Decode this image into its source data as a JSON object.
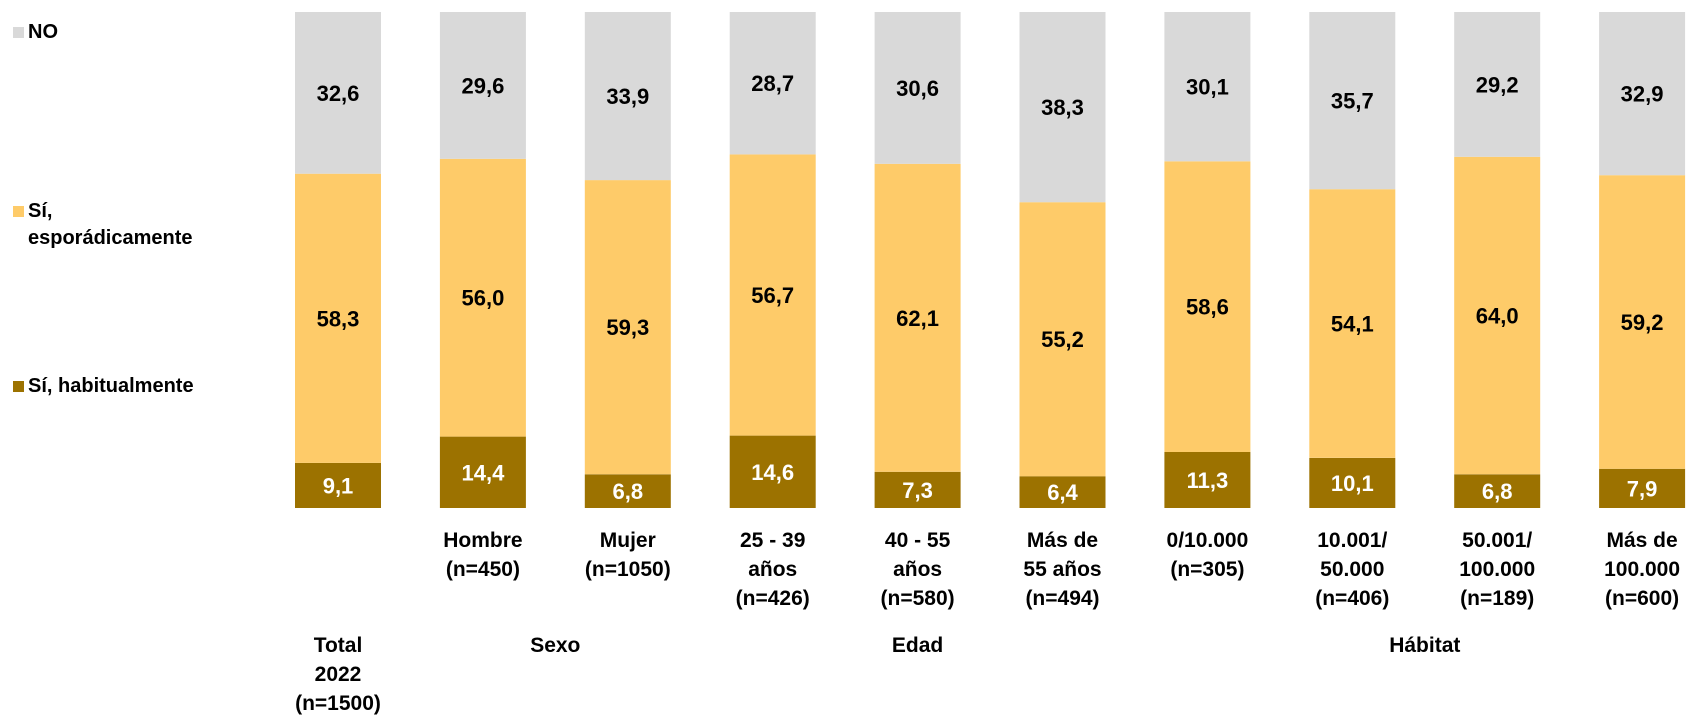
{
  "chart_data": {
    "type": "bar",
    "stacked": true,
    "ylim": [
      0,
      100
    ],
    "grid": false,
    "legend_position": "left",
    "categories": [
      [
        "Total",
        "2022",
        "(n=1500)"
      ],
      [
        "Hombre",
        "(n=450)"
      ],
      [
        "Mujer",
        "(n=1050)"
      ],
      [
        "25 - 39",
        "años",
        "(n=426)"
      ],
      [
        "40 - 55",
        "años",
        "(n=580)"
      ],
      [
        "Más de",
        "55 años",
        "(n=494)"
      ],
      [
        "0/10.000",
        "(n=305)"
      ],
      [
        "10.001/",
        "50.000",
        "(n=406)"
      ],
      [
        "50.001/",
        "100.000",
        "(n=189)"
      ],
      [
        "Más de",
        "100.000",
        "(n=600)"
      ]
    ],
    "series": [
      {
        "name": "Sí, habitualmente",
        "color": "#9c7200",
        "label_color": "#ffffff",
        "values": [
          9.1,
          14.4,
          6.8,
          14.6,
          7.3,
          6.4,
          11.3,
          10.1,
          6.8,
          7.9
        ],
        "labels": [
          "9,1",
          "14,4",
          "6,8",
          "14,6",
          "7,3",
          "6,4",
          "11,3",
          "10,1",
          "6,8",
          "7,9"
        ]
      },
      {
        "name": "Sí, esporádicamente",
        "color": "#fecb69",
        "label_color": "#000000",
        "values": [
          58.3,
          56.0,
          59.3,
          56.7,
          62.1,
          55.2,
          58.6,
          54.1,
          64.0,
          59.2
        ],
        "labels": [
          "58,3",
          "56,0",
          "59,3",
          "56,7",
          "62,1",
          "55,2",
          "58,6",
          "54,1",
          "64,0",
          "59,2"
        ]
      },
      {
        "name": "NO",
        "color": "#d9d9d9",
        "label_color": "#000000",
        "values": [
          32.6,
          29.6,
          33.9,
          28.7,
          30.6,
          38.3,
          30.1,
          35.7,
          29.2,
          32.9
        ],
        "labels": [
          "32,6",
          "29,6",
          "33,9",
          "28,7",
          "30,6",
          "38,3",
          "30,1",
          "35,7",
          "29,2",
          "32,9"
        ]
      }
    ],
    "legend": [
      {
        "label_lines": [
          "NO"
        ],
        "color": "#d9d9d9"
      },
      {
        "label_lines": [
          "Sí,",
          "esporádicamente"
        ],
        "color": "#fecb69"
      },
      {
        "label_lines": [
          "Sí, habitualmente"
        ],
        "color": "#9c7200"
      }
    ],
    "groups": [
      {
        "label": "Sexo",
        "range": [
          1,
          2
        ]
      },
      {
        "label": "Edad",
        "range": [
          3,
          5
        ]
      },
      {
        "label": "Hábitat",
        "range": [
          6,
          9
        ]
      }
    ]
  }
}
